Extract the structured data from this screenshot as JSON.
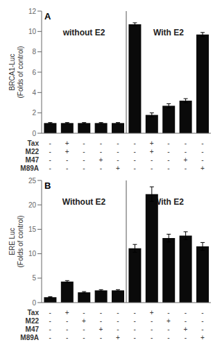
{
  "chart_data": [
    {
      "type": "bar",
      "title": "A",
      "y_label": "BRCA1-Luc\n(Folds of control)",
      "categories": [
        null,
        null,
        null,
        null,
        null,
        null,
        null,
        null,
        null,
        null
      ],
      "values": [
        1.0,
        1.0,
        1.0,
        1.0,
        1.0,
        10.7,
        1.8,
        2.7,
        3.2,
        9.7
      ],
      "errors": [
        0.05,
        0.05,
        0.05,
        0.05,
        0.05,
        0.15,
        0.2,
        0.2,
        0.2,
        0.2
      ],
      "color": "#0a0a0a",
      "ylim": [
        0,
        12
      ],
      "yticks": [
        0,
        2,
        4,
        6,
        8,
        10,
        12
      ],
      "grid": false,
      "tick_labels": "y",
      "annotations": [
        "without E2",
        "With E2"
      ],
      "divider": 4.5,
      "table": [
        {
          "label": "Tax",
          "values": [
            "-",
            "+",
            "-",
            "-",
            "-",
            "-",
            "+",
            "-",
            "-",
            "-"
          ]
        },
        {
          "label": "M22",
          "values": [
            "-",
            "+",
            "-",
            "-",
            "-",
            "-",
            "+",
            "-",
            "-",
            "-"
          ]
        },
        {
          "label": "M47",
          "values": [
            "-",
            "-",
            "-",
            "+",
            "-",
            "-",
            "-",
            "-",
            "+",
            "-"
          ]
        },
        {
          "label": "M89A",
          "values": [
            "-",
            "-",
            "-",
            "-",
            "+",
            "-",
            "-",
            "-",
            "-",
            "+"
          ]
        }
      ]
    },
    {
      "type": "bar",
      "title": "B",
      "y_label": "ERE Luc\n(Folds of control)",
      "categories": [
        null,
        null,
        null,
        null,
        null,
        null,
        null,
        null,
        null,
        null
      ],
      "values": [
        1.1,
        4.3,
        2.1,
        2.5,
        2.5,
        11.1,
        22.2,
        13.2,
        13.7,
        11.5
      ],
      "errors": [
        0.1,
        0.2,
        0.15,
        0.15,
        0.15,
        0.8,
        1.5,
        0.8,
        0.8,
        0.8
      ],
      "color": "#0a0a0a",
      "ylim": [
        0,
        25
      ],
      "yticks": [
        0,
        5,
        10,
        15,
        20,
        25
      ],
      "grid": false,
      "tick_labels": "y",
      "annotations": [
        "Without E2",
        "With E2"
      ],
      "divider": 4.5,
      "table": [
        {
          "label": "Tax",
          "values": [
            "-",
            "+",
            "-",
            "-",
            "-",
            "-",
            "+",
            "-",
            "-",
            "-"
          ]
        },
        {
          "label": "M22",
          "values": [
            "-",
            "-",
            "+",
            "-",
            "-",
            "-",
            "-",
            "+",
            "-",
            "-"
          ]
        },
        {
          "label": "M47",
          "values": [
            "-",
            "-",
            "-",
            "+",
            "-",
            "-",
            "-",
            "-",
            "+",
            "-"
          ]
        },
        {
          "label": "M89A",
          "values": [
            "-",
            "-",
            "-",
            "-",
            "+",
            "-",
            "-",
            "-",
            "-",
            "+"
          ]
        }
      ]
    }
  ]
}
